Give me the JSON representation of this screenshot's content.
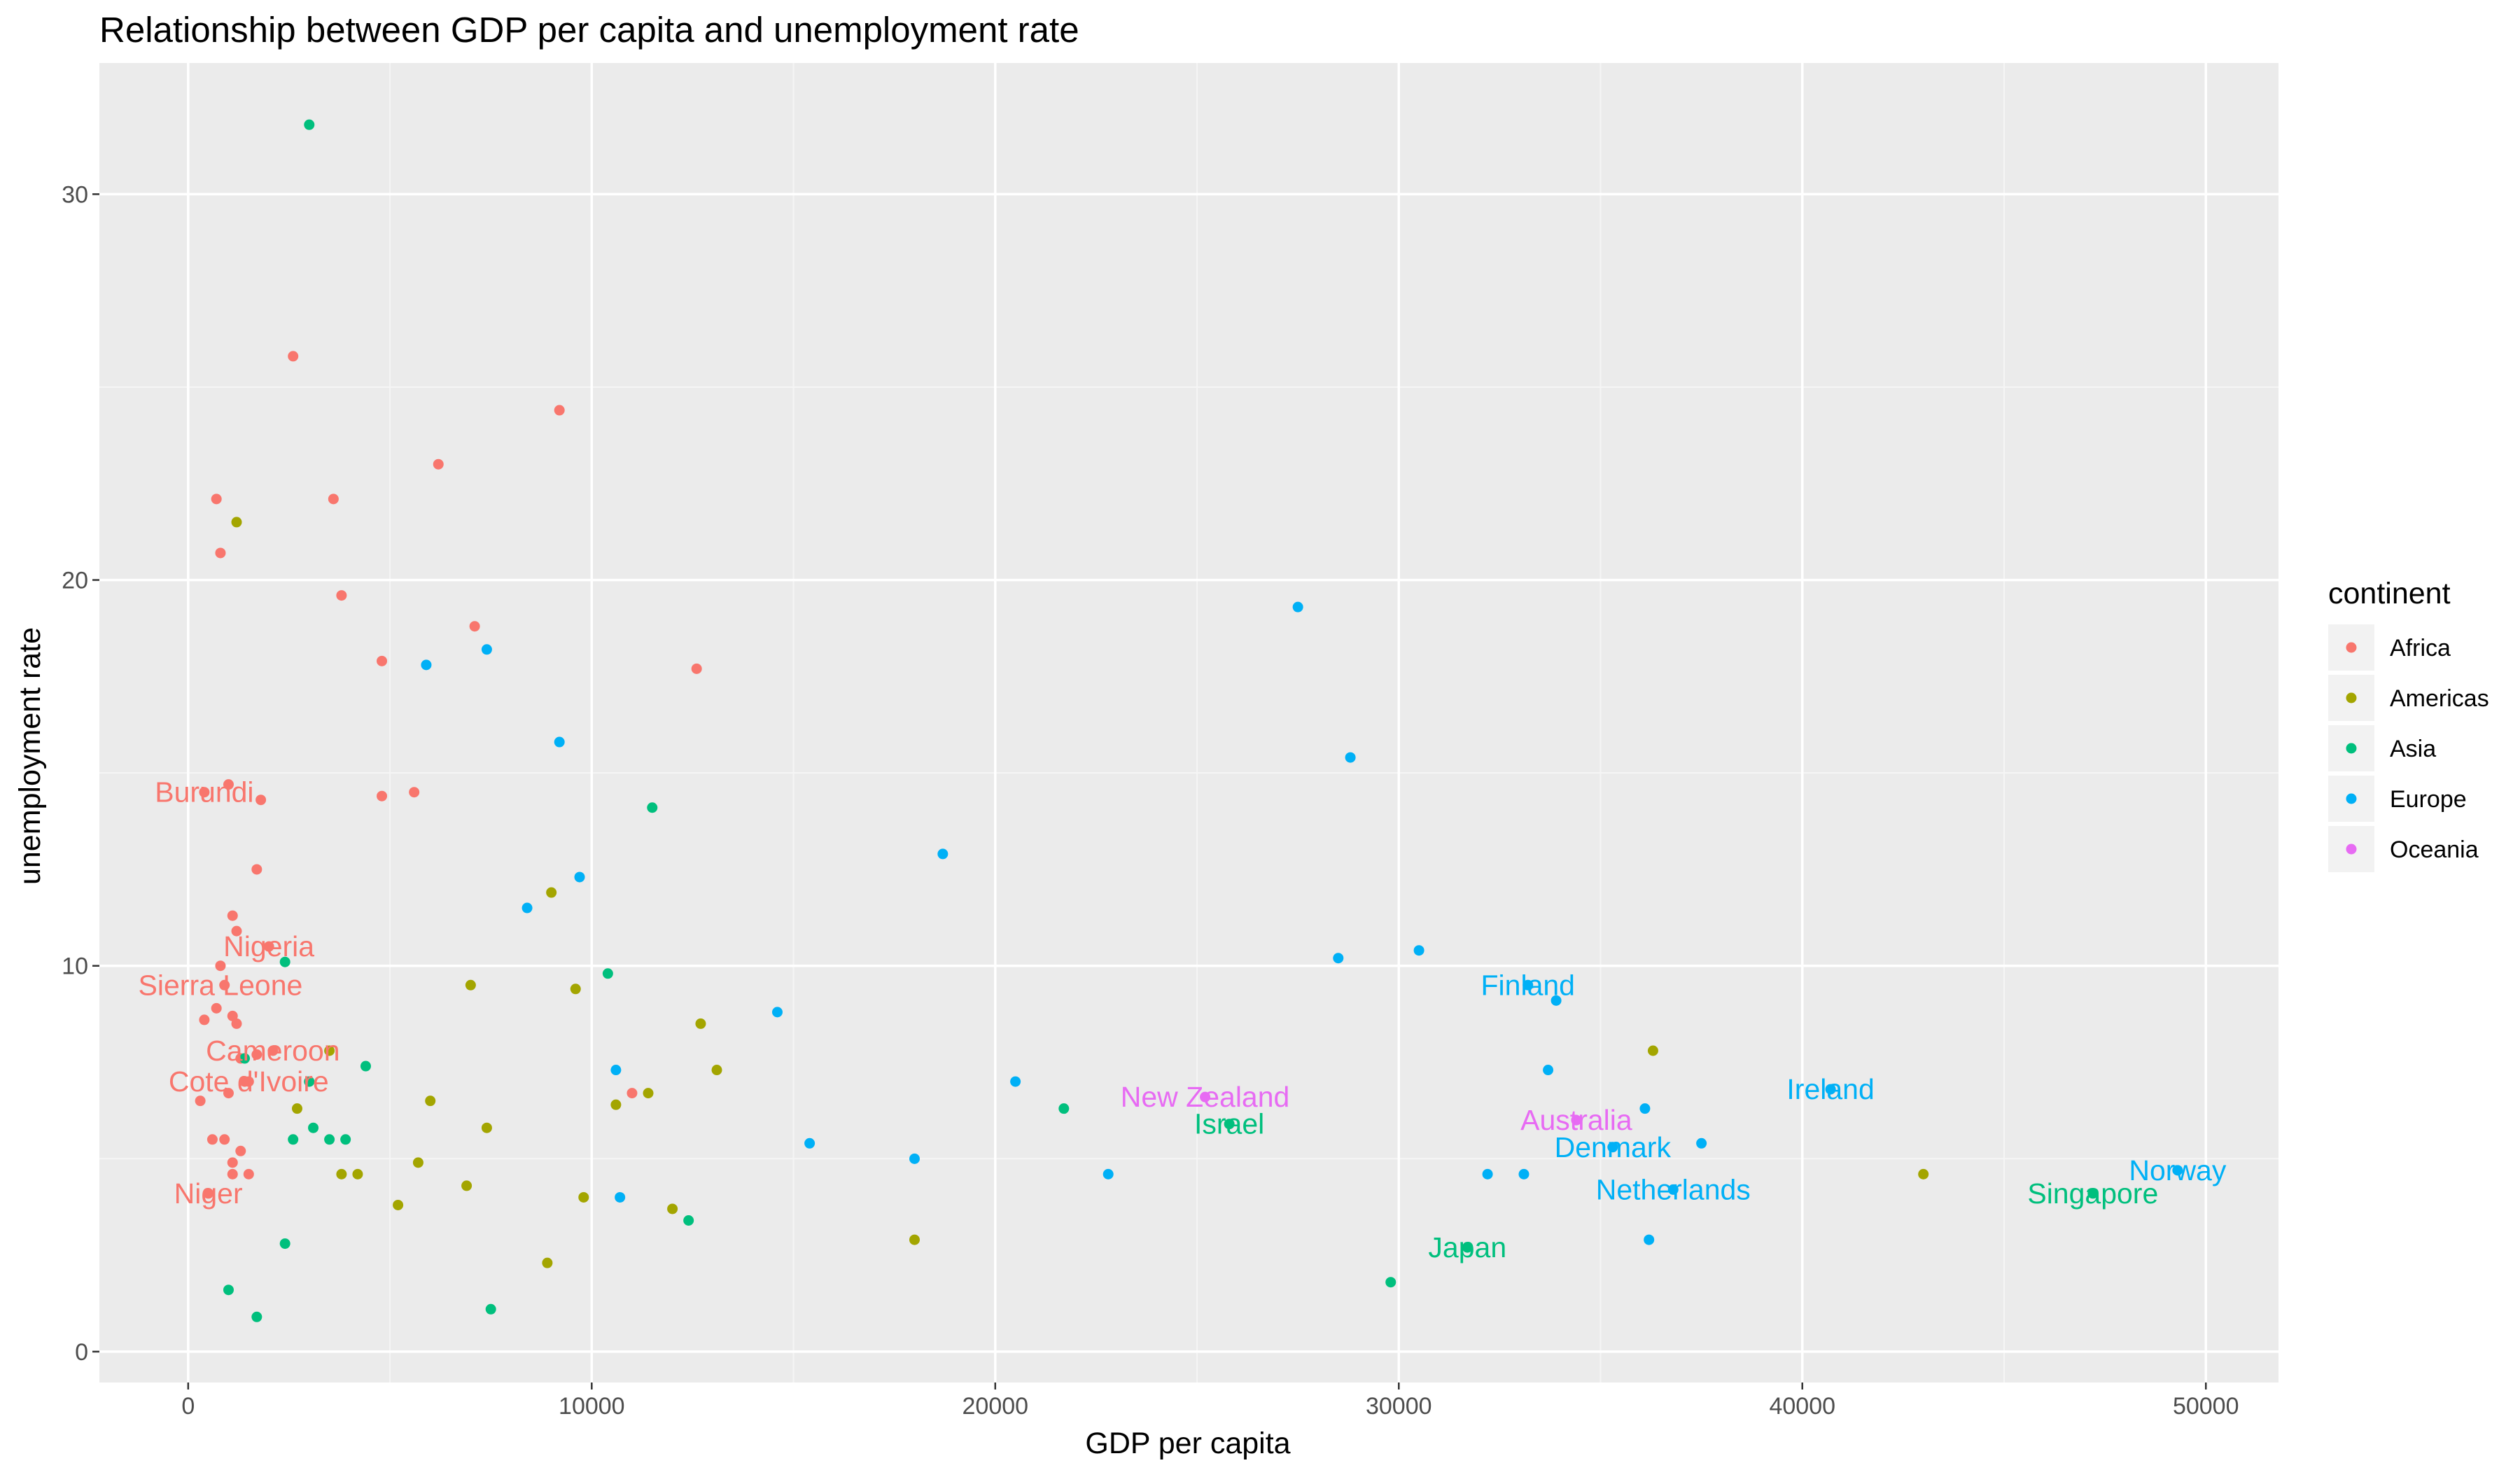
{
  "chart_data": {
    "type": "scatter",
    "title": "Relationship between GDP per capita and unemployment rate",
    "xlabel": "GDP per capita",
    "ylabel": "unemployment rate",
    "xlim": [
      -2200,
      51800
    ],
    "ylim": [
      -0.8,
      33.4
    ],
    "x_ticks": [
      0,
      10000,
      20000,
      30000,
      40000,
      50000
    ],
    "x_tick_labels": [
      "0",
      "10000",
      "20000",
      "30000",
      "40000",
      "50000"
    ],
    "y_ticks": [
      0,
      10,
      20,
      30
    ],
    "y_tick_labels": [
      "0",
      "10",
      "20",
      "30"
    ],
    "grid": true,
    "legend": {
      "title": "continent",
      "placement": "right",
      "entries": [
        "Africa",
        "Americas",
        "Asia",
        "Europe",
        "Oceania"
      ]
    },
    "colors": {
      "Africa": "#F8766D",
      "Americas": "#A3A500",
      "Asia": "#00BF7D",
      "Europe": "#00B0F6",
      "Oceania": "#E76BF3",
      "panel": "#EBEBEB",
      "grid_major": "#FFFFFF",
      "grid_minor": "#F5F5F5"
    },
    "series": [
      {
        "name": "Africa",
        "points": [
          [
            2600,
            25.8
          ],
          [
            9200,
            24.4
          ],
          [
            6200,
            23.0
          ],
          [
            3600,
            22.1
          ],
          [
            700,
            22.1
          ],
          [
            800,
            20.7
          ],
          [
            3800,
            19.6
          ],
          [
            7100,
            18.8
          ],
          [
            4800,
            17.9
          ],
          [
            12600,
            17.7
          ],
          [
            4800,
            14.4
          ],
          [
            5600,
            14.5
          ],
          [
            1800,
            14.3
          ],
          [
            1000,
            14.7
          ],
          [
            400,
            14.5
          ],
          [
            1700,
            12.5
          ],
          [
            1100,
            11.3
          ],
          [
            1200,
            10.9
          ],
          [
            2000,
            10.5
          ],
          [
            800,
            10.0
          ],
          [
            900,
            9.5
          ],
          [
            700,
            8.9
          ],
          [
            1100,
            8.7
          ],
          [
            400,
            8.6
          ],
          [
            1200,
            8.5
          ],
          [
            2100,
            7.8
          ],
          [
            1700,
            7.7
          ],
          [
            1300,
            7.6
          ],
          [
            1400,
            7.0
          ],
          [
            1500,
            7.0
          ],
          [
            1000,
            6.7
          ],
          [
            300,
            6.5
          ],
          [
            11000,
            6.7
          ],
          [
            600,
            5.5
          ],
          [
            900,
            5.5
          ],
          [
            1300,
            5.2
          ],
          [
            1100,
            4.9
          ],
          [
            1100,
            4.6
          ],
          [
            1500,
            4.6
          ],
          [
            500,
            4.1
          ]
        ],
        "labels": [
          {
            "text": "Burundi",
            "x": 400,
            "y": 14.5
          },
          {
            "text": "Nigeria",
            "x": 2000,
            "y": 10.5
          },
          {
            "text": "Sierra Leone",
            "x": 800,
            "y": 9.5
          },
          {
            "text": "Cameroon",
            "x": 2100,
            "y": 7.8
          },
          {
            "text": "Cote d'Ivoire",
            "x": 1500,
            "y": 7.0
          },
          {
            "text": "Niger",
            "x": 500,
            "y": 4.1
          }
        ]
      },
      {
        "name": "Americas",
        "points": [
          [
            1200,
            21.5
          ],
          [
            9000,
            11.9
          ],
          [
            7000,
            9.5
          ],
          [
            9600,
            9.4
          ],
          [
            12700,
            8.5
          ],
          [
            3500,
            7.8
          ],
          [
            13100,
            7.3
          ],
          [
            11400,
            6.7
          ],
          [
            10600,
            6.4
          ],
          [
            6000,
            6.5
          ],
          [
            2700,
            6.3
          ],
          [
            7400,
            5.8
          ],
          [
            5700,
            4.9
          ],
          [
            3800,
            4.6
          ],
          [
            4200,
            4.6
          ],
          [
            6900,
            4.3
          ],
          [
            5200,
            3.8
          ],
          [
            9800,
            4.0
          ],
          [
            12000,
            3.7
          ],
          [
            8900,
            2.3
          ],
          [
            18000,
            2.9
          ],
          [
            36300,
            7.8
          ],
          [
            43000,
            4.6
          ]
        ],
        "labels": []
      },
      {
        "name": "Asia",
        "points": [
          [
            3000,
            31.8
          ],
          [
            11500,
            14.1
          ],
          [
            2400,
            10.1
          ],
          [
            10400,
            9.8
          ],
          [
            4400,
            7.4
          ],
          [
            3000,
            7.0
          ],
          [
            1400,
            7.6
          ],
          [
            21700,
            6.3
          ],
          [
            2600,
            5.5
          ],
          [
            3100,
            5.8
          ],
          [
            3500,
            5.5
          ],
          [
            3900,
            5.5
          ],
          [
            12400,
            3.4
          ],
          [
            2400,
            2.8
          ],
          [
            1000,
            1.6
          ],
          [
            1700,
            0.9
          ],
          [
            7500,
            1.1
          ],
          [
            25800,
            5.9
          ],
          [
            31700,
            2.7
          ],
          [
            29800,
            1.8
          ],
          [
            47200,
            4.1
          ]
        ],
        "labels": [
          {
            "text": "Israel",
            "x": 25800,
            "y": 5.9
          },
          {
            "text": "Japan",
            "x": 31700,
            "y": 2.7
          },
          {
            "text": "Singapore",
            "x": 47200,
            "y": 4.1
          }
        ]
      },
      {
        "name": "Europe",
        "points": [
          [
            27500,
            19.3
          ],
          [
            5900,
            17.8
          ],
          [
            7400,
            18.2
          ],
          [
            9200,
            15.8
          ],
          [
            28800,
            15.4
          ],
          [
            18700,
            12.9
          ],
          [
            9700,
            12.3
          ],
          [
            8400,
            11.5
          ],
          [
            30500,
            10.4
          ],
          [
            28500,
            10.2
          ],
          [
            33200,
            9.5
          ],
          [
            33900,
            9.1
          ],
          [
            14600,
            8.8
          ],
          [
            10600,
            7.3
          ],
          [
            33700,
            7.3
          ],
          [
            20500,
            7.0
          ],
          [
            40700,
            6.8
          ],
          [
            36100,
            6.3
          ],
          [
            37500,
            5.4
          ],
          [
            35300,
            5.3
          ],
          [
            15400,
            5.4
          ],
          [
            18000,
            5.0
          ],
          [
            22800,
            4.6
          ],
          [
            32200,
            4.6
          ],
          [
            33100,
            4.6
          ],
          [
            36800,
            4.2
          ],
          [
            10700,
            4.0
          ],
          [
            36200,
            2.9
          ],
          [
            49300,
            4.7
          ]
        ],
        "labels": [
          {
            "text": "Finland",
            "x": 33200,
            "y": 9.5
          },
          {
            "text": "Ireland",
            "x": 40700,
            "y": 6.8
          },
          {
            "text": "Denmark",
            "x": 35300,
            "y": 5.3
          },
          {
            "text": "Netherlands",
            "x": 36800,
            "y": 4.2
          },
          {
            "text": "Norway",
            "x": 49300,
            "y": 4.7
          }
        ]
      },
      {
        "name": "Oceania",
        "points": [
          [
            25200,
            6.6
          ],
          [
            34400,
            6.0
          ]
        ],
        "labels": [
          {
            "text": "New Zealand",
            "x": 25200,
            "y": 6.6
          },
          {
            "text": "Australia",
            "x": 34400,
            "y": 6.0
          }
        ]
      }
    ]
  }
}
